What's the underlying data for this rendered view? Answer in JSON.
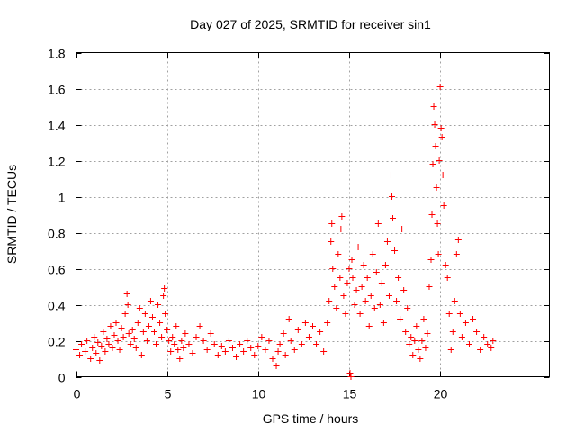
{
  "chart_data": {
    "type": "scatter",
    "title": "Day 027 of 2025, SRMTID for receiver sin1",
    "xlabel": "GPS time / hours",
    "ylabel": "SRMTID / TECUs",
    "xlim": [
      0,
      26
    ],
    "ylim": [
      0,
      1.8
    ],
    "xticks": [
      0,
      5,
      10,
      15,
      20
    ],
    "xtick_labels": [
      "0",
      "5",
      "10",
      "15",
      "20"
    ],
    "yticks": [
      0,
      0.2,
      0.4,
      0.6,
      0.8,
      1,
      1.2,
      1.4,
      1.6,
      1.8
    ],
    "ytick_labels": [
      "0",
      "0.2",
      "0.4",
      "0.6",
      "0.8",
      "1",
      "1.2",
      "1.4",
      "1.6",
      "1.8"
    ],
    "grid": true,
    "marker": "+",
    "color": "#ff0000",
    "series": [
      {
        "name": "sin1",
        "points": [
          [
            0.0,
            0.15
          ],
          [
            0.2,
            0.12
          ],
          [
            0.3,
            0.18
          ],
          [
            0.5,
            0.14
          ],
          [
            0.6,
            0.2
          ],
          [
            0.8,
            0.1
          ],
          [
            0.9,
            0.16
          ],
          [
            1.0,
            0.22
          ],
          [
            1.1,
            0.13
          ],
          [
            1.2,
            0.19
          ],
          [
            1.3,
            0.09
          ],
          [
            1.4,
            0.17
          ],
          [
            1.5,
            0.25
          ],
          [
            1.6,
            0.14
          ],
          [
            1.7,
            0.21
          ],
          [
            1.8,
            0.18
          ],
          [
            1.9,
            0.28
          ],
          [
            2.0,
            0.16
          ],
          [
            2.1,
            0.23
          ],
          [
            2.2,
            0.3
          ],
          [
            2.3,
            0.2
          ],
          [
            2.4,
            0.15
          ],
          [
            2.5,
            0.27
          ],
          [
            2.6,
            0.22
          ],
          [
            2.7,
            0.35
          ],
          [
            2.8,
            0.46
          ],
          [
            2.85,
            0.4
          ],
          [
            2.9,
            0.24
          ],
          [
            3.0,
            0.18
          ],
          [
            3.1,
            0.26
          ],
          [
            3.2,
            0.21
          ],
          [
            3.3,
            0.16
          ],
          [
            3.4,
            0.3
          ],
          [
            3.5,
            0.38
          ],
          [
            3.6,
            0.12
          ],
          [
            3.7,
            0.25
          ],
          [
            3.8,
            0.35
          ],
          [
            3.9,
            0.2
          ],
          [
            4.0,
            0.28
          ],
          [
            4.1,
            0.42
          ],
          [
            4.2,
            0.33
          ],
          [
            4.3,
            0.25
          ],
          [
            4.4,
            0.18
          ],
          [
            4.5,
            0.4
          ],
          [
            4.6,
            0.3
          ],
          [
            4.7,
            0.22
          ],
          [
            4.8,
            0.45
          ],
          [
            4.85,
            0.49
          ],
          [
            4.9,
            0.35
          ],
          [
            5.0,
            0.26
          ],
          [
            5.1,
            0.2
          ],
          [
            5.2,
            0.14
          ],
          [
            5.3,
            0.22
          ],
          [
            5.4,
            0.18
          ],
          [
            5.5,
            0.28
          ],
          [
            5.6,
            0.15
          ],
          [
            5.7,
            0.1
          ],
          [
            5.8,
            0.2
          ],
          [
            5.9,
            0.16
          ],
          [
            6.0,
            0.24
          ],
          [
            6.2,
            0.18
          ],
          [
            6.4,
            0.13
          ],
          [
            6.6,
            0.22
          ],
          [
            6.8,
            0.28
          ],
          [
            7.0,
            0.2
          ],
          [
            7.2,
            0.15
          ],
          [
            7.4,
            0.24
          ],
          [
            7.6,
            0.18
          ],
          [
            7.8,
            0.12
          ],
          [
            8.0,
            0.17
          ],
          [
            8.2,
            0.14
          ],
          [
            8.4,
            0.2
          ],
          [
            8.6,
            0.16
          ],
          [
            8.8,
            0.11
          ],
          [
            9.0,
            0.18
          ],
          [
            9.2,
            0.14
          ],
          [
            9.4,
            0.2
          ],
          [
            9.6,
            0.16
          ],
          [
            9.8,
            0.12
          ],
          [
            10.0,
            0.17
          ],
          [
            10.2,
            0.22
          ],
          [
            10.4,
            0.15
          ],
          [
            10.6,
            0.2
          ],
          [
            10.8,
            0.1
          ],
          [
            11.0,
            0.06
          ],
          [
            11.1,
            0.14
          ],
          [
            11.2,
            0.18
          ],
          [
            11.4,
            0.24
          ],
          [
            11.5,
            0.12
          ],
          [
            11.7,
            0.32
          ],
          [
            11.8,
            0.2
          ],
          [
            12.0,
            0.15
          ],
          [
            12.2,
            0.26
          ],
          [
            12.4,
            0.18
          ],
          [
            12.6,
            0.3
          ],
          [
            12.8,
            0.22
          ],
          [
            13.0,
            0.28
          ],
          [
            13.2,
            0.18
          ],
          [
            13.4,
            0.25
          ],
          [
            13.6,
            0.14
          ],
          [
            13.8,
            0.3
          ],
          [
            13.9,
            0.42
          ],
          [
            14.0,
            0.75
          ],
          [
            14.05,
            0.85
          ],
          [
            14.1,
            0.6
          ],
          [
            14.2,
            0.5
          ],
          [
            14.3,
            0.38
          ],
          [
            14.4,
            0.68
          ],
          [
            14.5,
            0.55
          ],
          [
            14.55,
            0.82
          ],
          [
            14.6,
            0.89
          ],
          [
            14.7,
            0.45
          ],
          [
            14.8,
            0.35
          ],
          [
            14.9,
            0.52
          ],
          [
            15.0,
            0.6
          ],
          [
            15.05,
            0.02
          ],
          [
            15.1,
            0.0
          ],
          [
            15.15,
            0.65
          ],
          [
            15.2,
            0.55
          ],
          [
            15.3,
            0.4
          ],
          [
            15.4,
            0.48
          ],
          [
            15.5,
            0.72
          ],
          [
            15.6,
            0.35
          ],
          [
            15.7,
            0.5
          ],
          [
            15.8,
            0.62
          ],
          [
            15.9,
            0.42
          ],
          [
            16.0,
            0.55
          ],
          [
            16.1,
            0.28
          ],
          [
            16.2,
            0.45
          ],
          [
            16.3,
            0.68
          ],
          [
            16.4,
            0.38
          ],
          [
            16.5,
            0.58
          ],
          [
            16.6,
            0.85
          ],
          [
            16.7,
            0.4
          ],
          [
            16.8,
            0.52
          ],
          [
            16.9,
            0.3
          ],
          [
            17.0,
            0.62
          ],
          [
            17.1,
            0.75
          ],
          [
            17.2,
            0.45
          ],
          [
            17.3,
            1.12
          ],
          [
            17.35,
            1.0
          ],
          [
            17.4,
            0.88
          ],
          [
            17.5,
            0.7
          ],
          [
            17.6,
            0.42
          ],
          [
            17.7,
            0.55
          ],
          [
            17.8,
            0.32
          ],
          [
            17.9,
            0.82
          ],
          [
            18.0,
            0.48
          ],
          [
            18.1,
            0.25
          ],
          [
            18.2,
            0.38
          ],
          [
            18.3,
            0.18
          ],
          [
            18.4,
            0.22
          ],
          [
            18.5,
            0.12
          ],
          [
            18.6,
            0.2
          ],
          [
            18.7,
            0.28
          ],
          [
            18.8,
            0.15
          ],
          [
            18.9,
            0.1
          ],
          [
            19.0,
            0.2
          ],
          [
            19.1,
            0.32
          ],
          [
            19.2,
            0.16
          ],
          [
            19.3,
            0.24
          ],
          [
            19.4,
            0.5
          ],
          [
            19.5,
            0.65
          ],
          [
            19.55,
            0.9
          ],
          [
            19.6,
            1.18
          ],
          [
            19.65,
            1.5
          ],
          [
            19.7,
            1.4
          ],
          [
            19.75,
            1.28
          ],
          [
            19.8,
            1.05
          ],
          [
            19.85,
            0.85
          ],
          [
            19.9,
            0.68
          ],
          [
            19.95,
            1.2
          ],
          [
            20.0,
            1.61
          ],
          [
            20.05,
            1.38
          ],
          [
            20.1,
            1.33
          ],
          [
            20.15,
            1.12
          ],
          [
            20.2,
            0.95
          ],
          [
            20.3,
            0.62
          ],
          [
            20.4,
            0.55
          ],
          [
            20.5,
            0.35
          ],
          [
            20.6,
            0.15
          ],
          [
            20.7,
            0.25
          ],
          [
            20.8,
            0.42
          ],
          [
            20.9,
            0.68
          ],
          [
            21.0,
            0.76
          ],
          [
            21.1,
            0.35
          ],
          [
            21.2,
            0.22
          ],
          [
            21.4,
            0.3
          ],
          [
            21.6,
            0.18
          ],
          [
            21.8,
            0.32
          ],
          [
            22.0,
            0.25
          ],
          [
            22.2,
            0.15
          ],
          [
            22.4,
            0.22
          ],
          [
            22.6,
            0.18
          ],
          [
            22.8,
            0.16
          ],
          [
            22.9,
            0.2
          ]
        ]
      }
    ]
  }
}
